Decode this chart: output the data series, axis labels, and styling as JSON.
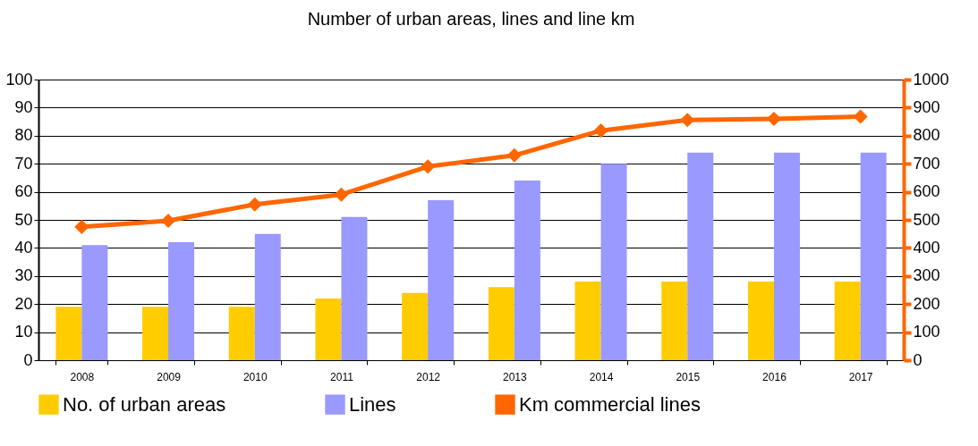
{
  "chart_data": {
    "type": "bar",
    "title": "Number of urban areas, lines and line km",
    "categories": [
      "2008",
      "2009",
      "2010",
      "2011",
      "2012",
      "2013",
      "2014",
      "2015",
      "2016",
      "2017"
    ],
    "series": [
      {
        "name": "No. of urban areas",
        "color": "#ffcc00",
        "values": [
          19,
          19,
          19,
          22,
          24,
          26,
          28,
          28,
          28,
          28
        ]
      },
      {
        "name": "Lines",
        "color": "#9999ff",
        "values": [
          41,
          42,
          45,
          51,
          57,
          64,
          70,
          74,
          74,
          74
        ]
      },
      {
        "name": "Km  commercial  lines",
        "type": "line",
        "axis": "y2",
        "color": "#ff6600",
        "values": [
          475,
          497,
          555,
          590,
          690,
          730,
          818,
          856,
          860,
          868
        ]
      }
    ],
    "ylim": [
      0,
      100
    ],
    "yticks": [
      0,
      10,
      20,
      30,
      40,
      50,
      60,
      70,
      80,
      90,
      100
    ],
    "y2lim": [
      0,
      1000
    ],
    "y2ticks": [
      0,
      100,
      200,
      300,
      400,
      500,
      600,
      700,
      800,
      900,
      1000
    ],
    "grid": "y",
    "legend": "bottom",
    "marker": "diamond",
    "line_style": "solid"
  }
}
